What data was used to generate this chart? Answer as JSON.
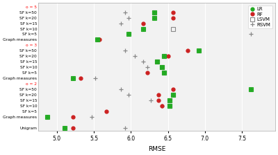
{
  "xlabel": "RMSE",
  "xlim": [
    4.75,
    7.95
  ],
  "xticks": [
    5.0,
    5.5,
    6.0,
    6.5,
    7.0,
    7.5
  ],
  "plot_bg": "#f2f2f2",
  "fig_bg": "#ffffff",
  "lr_color": "#22aa22",
  "rf_color": "#cc2222",
  "gray_color": "#888888",
  "data": {
    "o5_SF50": {
      "LR": 6.32,
      "RF": 6.57,
      "LSVM": 6.32,
      "RSVM": 5.92
    },
    "o5_SF20": {
      "LR": 6.32,
      "RF": 6.57,
      "LSVM": null,
      "RSVM": 5.97
    },
    "o5_SF15": {
      "LR": null,
      "RF": 6.17,
      "LSVM": null,
      "RSVM": 5.87
    },
    "o5_SF10": {
      "LR": 6.17,
      "RF": null,
      "LSVM": 6.57,
      "RSVM": null
    },
    "o5_SF5": {
      "LR": 5.97,
      "RF": null,
      "LSVM": null,
      "RSVM": 7.62
    },
    "o5_Graph": {
      "LR": 5.55,
      "RF": 5.57,
      "LSVM": null,
      "RSVM": null
    },
    "o3_SF50": {
      "LR": 6.92,
      "RF": 6.77,
      "LSVM": null,
      "RSVM": 5.92
    },
    "o3_SF20": {
      "LR": 6.45,
      "RF": 6.5,
      "LSVM": 6.45,
      "RSVM": 6.05
    },
    "o3_SF15": {
      "LR": 6.35,
      "RF": 6.35,
      "LSVM": 6.35,
      "RSVM": 6.17
    },
    "o3_SF10": {
      "LR": 6.42,
      "RF": 6.42,
      "LSVM": 6.42,
      "RSVM": 6.22
    },
    "o3_SF5": {
      "LR": 6.45,
      "RF": 6.22,
      "LSVM": 6.45,
      "RSVM": 6.45
    },
    "o3_Graph": {
      "LR": 5.22,
      "RF": 5.32,
      "LSVM": null,
      "RSVM": 5.52
    },
    "o2_SF50": {
      "LR": 7.62,
      "RF": 6.57,
      "LSVM": null,
      "RSVM": 5.87
    },
    "o2_SF20": {
      "LR": 6.57,
      "RF": 6.37,
      "LSVM": 6.57,
      "RSVM": 5.97
    },
    "o2_SF15": {
      "LR": 6.52,
      "RF": 6.37,
      "LSVM": 6.52,
      "RSVM": 6.27
    },
    "o2_SF10": {
      "LR": 6.52,
      "RF": 6.42,
      "LSVM": 6.52,
      "RSVM": 6.42
    },
    "o2_SF5": {
      "LR": null,
      "RF": 5.67,
      "LSVM": null,
      "RSVM": null
    },
    "o2_Graph": {
      "LR": 4.87,
      "RF": 5.22,
      "LSVM": null,
      "RSVM": 5.47
    },
    "Unigram": {
      "LR": 5.1,
      "RF": 5.22,
      "LSVM": null,
      "RSVM": 5.92
    }
  }
}
